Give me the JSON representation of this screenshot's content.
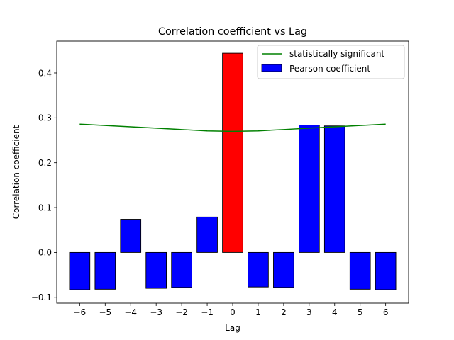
{
  "chart_data": {
    "type": "bar",
    "title": "Correlation coefficient vs Lag",
    "xlabel": "Lag",
    "ylabel": "Correlation coefficient",
    "x": [
      -6,
      -5,
      -4,
      -3,
      -2,
      -1,
      0,
      1,
      2,
      3,
      4,
      5,
      6
    ],
    "x_tick_labels": [
      "−6",
      "−5",
      "−4",
      "−3",
      "−2",
      "−1",
      "0",
      "1",
      "2",
      "3",
      "4",
      "5",
      "6"
    ],
    "y_ticks": [
      -0.1,
      0.0,
      0.1,
      0.2,
      0.3,
      0.4
    ],
    "y_tick_labels": [
      "−0.1",
      "0.0",
      "0.1",
      "0.2",
      "0.3",
      "0.4"
    ],
    "xlim": [
      -6.9,
      6.9
    ],
    "ylim": [
      -0.113,
      0.471
    ],
    "grid": false,
    "legend_position": "top-right",
    "series": [
      {
        "name": "Pearson coefficient",
        "kind": "bar",
        "color": "#0000ff",
        "highlight_color": "#ff0000",
        "highlight_x": 0,
        "values": [
          -0.083,
          -0.082,
          0.074,
          -0.08,
          -0.078,
          0.079,
          0.444,
          -0.077,
          -0.078,
          0.284,
          0.282,
          -0.082,
          -0.083
        ]
      },
      {
        "name": "statistically significant",
        "kind": "line",
        "color": "#008000",
        "values": [
          0.286,
          0.283,
          0.28,
          0.277,
          0.274,
          0.271,
          0.27,
          0.271,
          0.274,
          0.277,
          0.28,
          0.283,
          0.286
        ]
      }
    ]
  }
}
